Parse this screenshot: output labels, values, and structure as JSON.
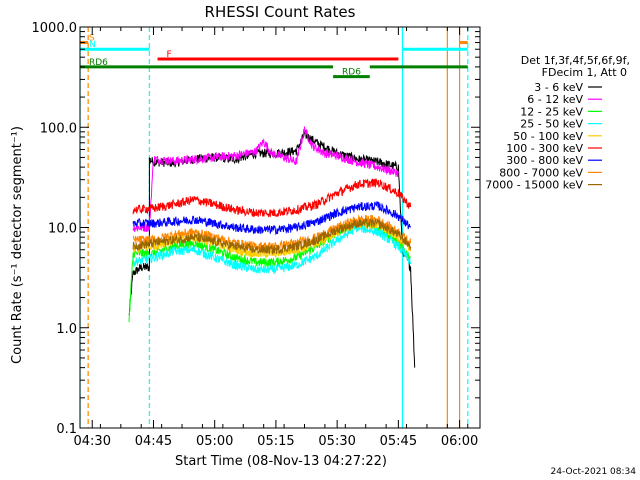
{
  "chart_data": {
    "type": "line",
    "title": "RHESSI Count Rates",
    "xlabel": "Start Time (08-Nov-13 04:27:22)",
    "ylabel": "Count Rate (s⁻¹ detector segment⁻¹)",
    "y_scale": "log",
    "ylim": [
      0.1,
      1000
    ],
    "xlim": [
      "04:27:00",
      "06:05:00"
    ],
    "x_ticks": [
      "04:30",
      "04:45",
      "05:00",
      "05:15",
      "05:30",
      "05:45",
      "06:00"
    ],
    "y_ticks": [
      "0.1",
      "1.0",
      "10.0",
      "100.0",
      "1000.0"
    ],
    "legend": {
      "placement": "right",
      "header": [
        "Det 1f,3f,4f,5f,6f,9f,",
        "FDecim 1, Att 0"
      ],
      "entries": [
        {
          "label": "3 - 6 keV",
          "color": "#000000"
        },
        {
          "label": "6 - 12 keV",
          "color": "#ff00ff"
        },
        {
          "label": "12 - 25 keV",
          "color": "#00ff00"
        },
        {
          "label": "25 - 50 keV",
          "color": "#00ffff"
        },
        {
          "label": "50 - 100 keV",
          "color": "#ffcc00"
        },
        {
          "label": "100 - 300 keV",
          "color": "#ff0000"
        },
        {
          "label": "300 - 800 keV",
          "color": "#0000ff"
        },
        {
          "label": "800 - 7000 keV",
          "color": "#ff8800"
        },
        {
          "label": "7000 - 15000 keV",
          "color": "#996600"
        }
      ]
    },
    "series": [
      {
        "name": "3 - 6 keV",
        "color": "#000000",
        "x": [
          "04:39",
          "04:40",
          "04:42",
          "04:44",
          "04:44",
          "04:45",
          "04:50",
          "04:55",
          "05:00",
          "05:05",
          "05:10",
          "05:15",
          "05:20",
          "05:22",
          "05:25",
          "05:30",
          "05:35",
          "05:40",
          "05:45",
          "05:46",
          "05:48",
          "05:49"
        ],
        "y": [
          1.3,
          3.5,
          4,
          4,
          48,
          45,
          44,
          48,
          50,
          48,
          55,
          55,
          58,
          85,
          70,
          55,
          48,
          45,
          40,
          6,
          4,
          0.4
        ]
      },
      {
        "name": "6 - 12 keV",
        "color": "#ff00ff",
        "x": [
          "04:40",
          "04:44",
          "04:45",
          "04:50",
          "04:55",
          "05:00",
          "05:05",
          "05:10",
          "05:12",
          "05:14",
          "05:17",
          "05:20",
          "05:22",
          "05:24",
          "05:27",
          "05:30",
          "05:35",
          "05:40",
          "05:45"
        ],
        "y": [
          10,
          10,
          48,
          46,
          48,
          50,
          52,
          57,
          72,
          55,
          50,
          45,
          95,
          65,
          55,
          52,
          45,
          40,
          35
        ]
      },
      {
        "name": "12 - 25 keV",
        "color": "#00ff00",
        "x": [
          "04:39",
          "04:40",
          "04:45",
          "04:50",
          "04:55",
          "05:00",
          "05:05",
          "05:10",
          "05:15",
          "05:20",
          "05:25",
          "05:30",
          "05:35",
          "05:40",
          "05:45",
          "05:48"
        ],
        "y": [
          1.1,
          5.5,
          5.5,
          6.5,
          7,
          6,
          5,
          4.5,
          4.5,
          5,
          6.5,
          9,
          11,
          10,
          7,
          5
        ]
      },
      {
        "name": "25 - 50 keV",
        "color": "#00ffff",
        "x": [
          "04:40",
          "04:45",
          "04:50",
          "04:55",
          "05:00",
          "05:05",
          "05:10",
          "05:15",
          "05:20",
          "05:25",
          "05:30",
          "05:35",
          "05:40",
          "05:45",
          "05:48"
        ],
        "y": [
          4.5,
          5,
          5.8,
          6,
          5,
          4.2,
          3.8,
          3.8,
          4.2,
          5.2,
          7.5,
          10,
          9,
          6.5,
          4.5
        ]
      },
      {
        "name": "50 - 100 keV",
        "color": "#ffcc00",
        "x": [
          "04:40",
          "04:45",
          "04:50",
          "04:55",
          "05:00",
          "05:05",
          "05:10",
          "05:15",
          "05:20",
          "05:25",
          "05:30",
          "05:35",
          "05:40",
          "05:45",
          "05:48"
        ],
        "y": [
          6,
          6.5,
          7.5,
          8,
          7,
          6,
          5.5,
          5.5,
          6,
          7,
          9,
          11,
          10.5,
          8,
          6
        ]
      },
      {
        "name": "100 - 300 keV",
        "color": "#ff0000",
        "x": [
          "04:40",
          "04:45",
          "04:50",
          "04:55",
          "05:00",
          "05:05",
          "05:10",
          "05:15",
          "05:20",
          "05:25",
          "05:30",
          "05:35",
          "05:40",
          "05:45",
          "05:48"
        ],
        "y": [
          15,
          15.5,
          17,
          19,
          17,
          15,
          14,
          14,
          15,
          17,
          22,
          27,
          28,
          22,
          16
        ]
      },
      {
        "name": "300 - 800 keV",
        "color": "#0000ff",
        "x": [
          "04:40",
          "04:45",
          "04:50",
          "04:55",
          "05:00",
          "05:05",
          "05:10",
          "05:15",
          "05:20",
          "05:25",
          "05:30",
          "05:35",
          "05:40",
          "05:45",
          "05:48"
        ],
        "y": [
          11,
          11,
          11.5,
          12,
          11,
          10,
          9.5,
          9.5,
          10,
          11.5,
          14,
          16,
          16.5,
          13,
          10
        ]
      },
      {
        "name": "800 - 7000 keV",
        "color": "#ff8800",
        "x": [
          "04:40",
          "04:45",
          "04:50",
          "04:55",
          "05:00",
          "05:05",
          "05:10",
          "05:15",
          "05:20",
          "05:25",
          "05:30",
          "05:35",
          "05:40",
          "05:45",
          "05:48"
        ],
        "y": [
          7.5,
          7.5,
          8.5,
          9,
          8,
          7,
          6.5,
          6.5,
          7,
          8,
          10,
          12,
          12,
          9,
          7
        ]
      },
      {
        "name": "7000 - 15000 keV",
        "color": "#996600",
        "x": [
          "04:40",
          "04:45",
          "04:50",
          "04:55",
          "05:00",
          "05:05",
          "05:10",
          "05:15",
          "05:20",
          "05:25",
          "05:30",
          "05:35",
          "05:40",
          "05:45",
          "05:48"
        ],
        "y": [
          6.5,
          7,
          7.5,
          8,
          7.2,
          6.5,
          6,
          6,
          6.5,
          7.5,
          9.5,
          11,
          11,
          8.5,
          6.5
        ]
      }
    ],
    "vertical_markers": [
      {
        "time": "04:27",
        "color": "#00ffff",
        "style": "solid"
      },
      {
        "time": "04:29",
        "color": "#ff8800",
        "style": "dashed"
      },
      {
        "time": "04:44",
        "color": "#00ffff",
        "style": "dashed"
      },
      {
        "time": "05:46",
        "color": "#00ffff",
        "style": "solid"
      },
      {
        "time": "05:57",
        "color": "#ff8800",
        "style": "solid"
      },
      {
        "time": "06:00",
        "color": "#ff8800",
        "style": "solid"
      },
      {
        "time": "06:02",
        "color": "#00ffff",
        "style": "dashed"
      }
    ],
    "flag_bars": [
      {
        "label": "S",
        "color": "#ff8800",
        "start": "04:27",
        "end": "04:29",
        "level": 700
      },
      {
        "label": "N",
        "color": "#00ffff",
        "start": "04:27",
        "end": "04:44",
        "level": 600
      },
      {
        "label": "",
        "color": "#00ffff",
        "start": "05:46",
        "end": "06:02",
        "level": 600
      },
      {
        "label": "",
        "color": "#ff8800",
        "start": "06:00",
        "end": "06:02",
        "level": 700
      },
      {
        "label": "F",
        "color": "#ff0000",
        "start": "04:46",
        "end": "05:45",
        "level": 480
      },
      {
        "label": "RD6",
        "color": "#008000",
        "start": "04:27",
        "end": "05:29",
        "level": 400
      },
      {
        "label": "RD6",
        "color": "#008000",
        "start": "05:29",
        "end": "05:38",
        "level": 320
      },
      {
        "label": "",
        "color": "#008000",
        "start": "05:38",
        "end": "06:02",
        "level": 400
      }
    ],
    "timestamp": "24-Oct-2021 08:34"
  }
}
